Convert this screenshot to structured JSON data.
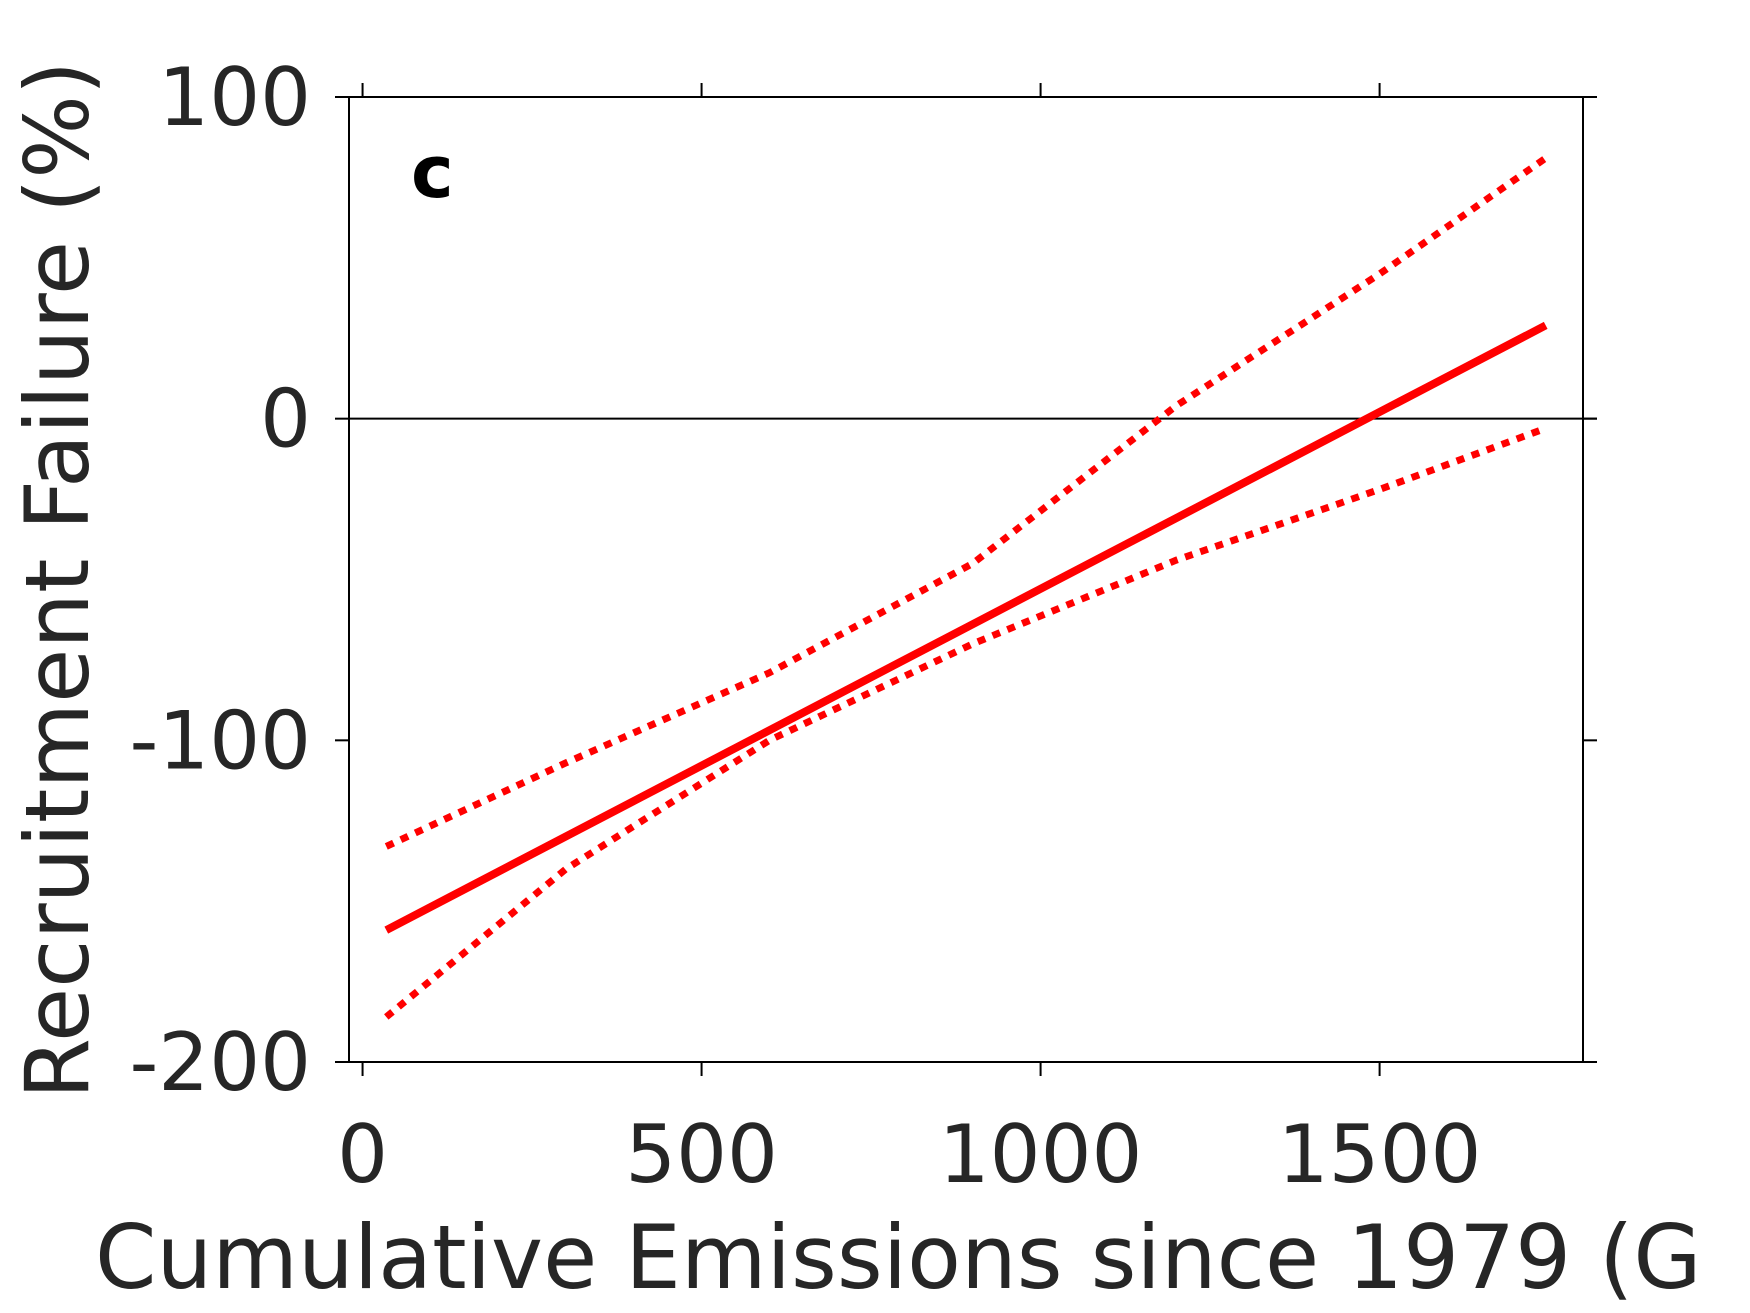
{
  "chart_data": {
    "type": "line",
    "panel_label": "c",
    "xlabel": "Cumulative Emissions since 1979 (G",
    "ylabel": "Recruitment Failure (%)",
    "xlim": [
      -20,
      1800
    ],
    "ylim": [
      -200,
      100
    ],
    "xticks": [
      0,
      500,
      1000,
      1500
    ],
    "xtick_labels": [
      "0",
      "500",
      "1000",
      "1500"
    ],
    "yticks": [
      -200,
      -100,
      0,
      100
    ],
    "ytick_labels": [
      "-200",
      "-100",
      "0",
      "100"
    ],
    "zero_line": 0,
    "grid": false,
    "colors": {
      "line": "#ff0000",
      "axis": "#000000",
      "text": "#262626"
    },
    "series": [
      {
        "style": "solid",
        "x": [
          35,
          1745
        ],
        "y": [
          -159,
          29
        ]
      },
      {
        "style": "dotted",
        "x": [
          35,
          300,
          600,
          900,
          1200,
          1500,
          1745
        ],
        "y": [
          -133,
          -107,
          -79,
          -45,
          4,
          45,
          81
        ]
      },
      {
        "style": "dotted",
        "x": [
          35,
          300,
          600,
          900,
          1200,
          1500,
          1745
        ],
        "y": [
          -186,
          -140,
          -100,
          -70,
          -44,
          -22,
          -3
        ]
      }
    ]
  }
}
